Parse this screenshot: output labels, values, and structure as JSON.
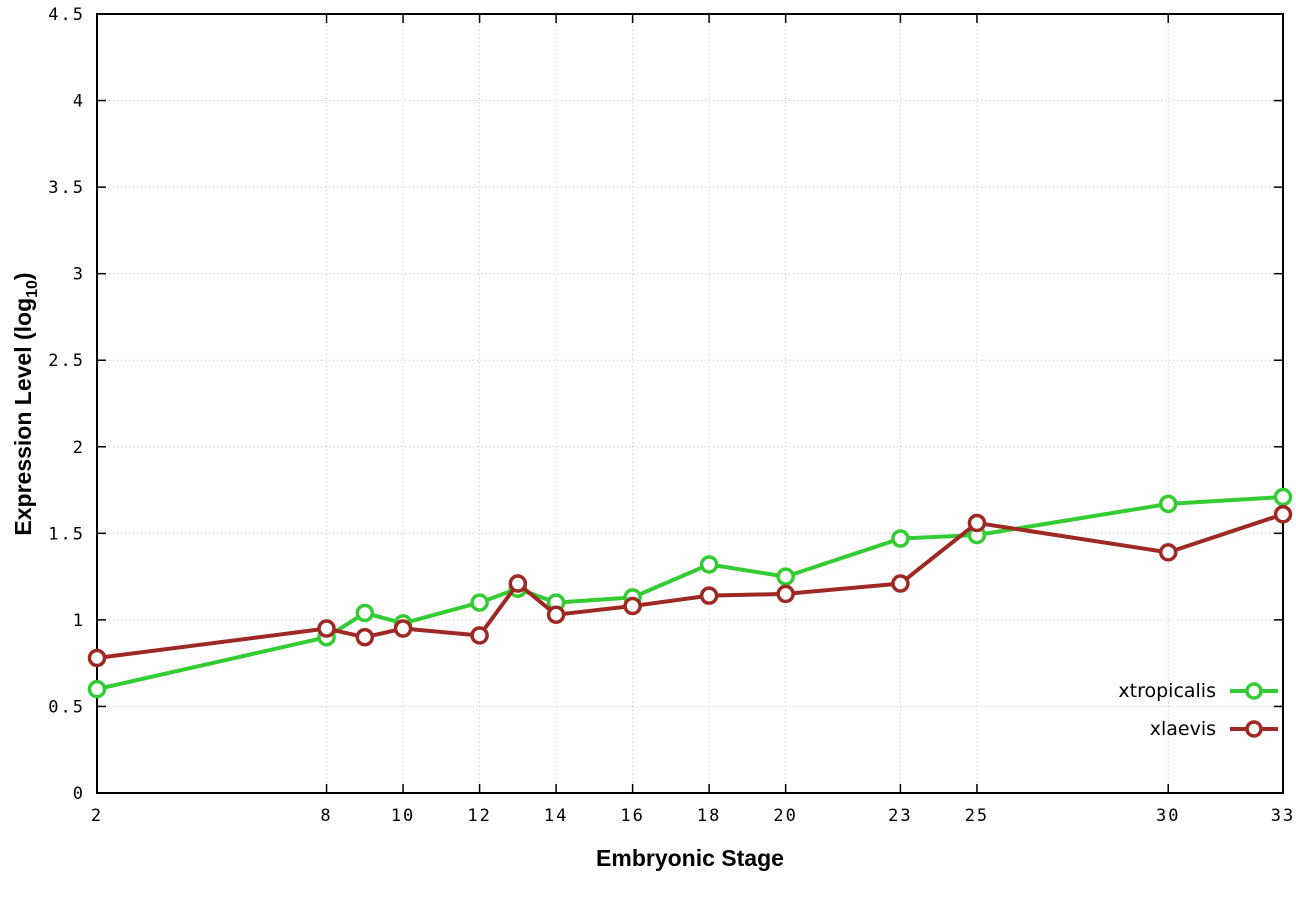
{
  "chart_data": {
    "type": "line",
    "title": "",
    "xlabel": "Embryonic Stage",
    "ylabel": {
      "pre": "Expression Level (log",
      "sub": "10",
      "post": ")"
    },
    "xlim": [
      2,
      33
    ],
    "ylim": [
      0,
      4.5
    ],
    "xticks": [
      2,
      8,
      10,
      12,
      14,
      16,
      18,
      20,
      23,
      25,
      30,
      33
    ],
    "yticks": [
      0,
      0.5,
      1,
      1.5,
      2,
      2.5,
      3,
      3.5,
      4,
      4.5
    ],
    "grid": true,
    "legend_position": "inside bottom-right",
    "x": [
      2,
      8,
      9,
      10,
      12,
      13,
      14,
      16,
      18,
      20,
      23,
      25,
      30,
      33
    ],
    "series": [
      {
        "name": "xtropicalis",
        "color": "#33cc33",
        "values": [
          0.6,
          0.9,
          1.04,
          0.98,
          1.1,
          1.18,
          1.1,
          1.13,
          1.32,
          1.25,
          1.47,
          1.49,
          1.67,
          1.71
        ]
      },
      {
        "name": "xlaevis",
        "color": "#9e2823",
        "values": [
          0.78,
          0.95,
          0.9,
          0.95,
          0.91,
          1.21,
          1.03,
          1.08,
          1.14,
          1.15,
          1.21,
          1.56,
          1.39,
          1.61
        ]
      }
    ]
  }
}
